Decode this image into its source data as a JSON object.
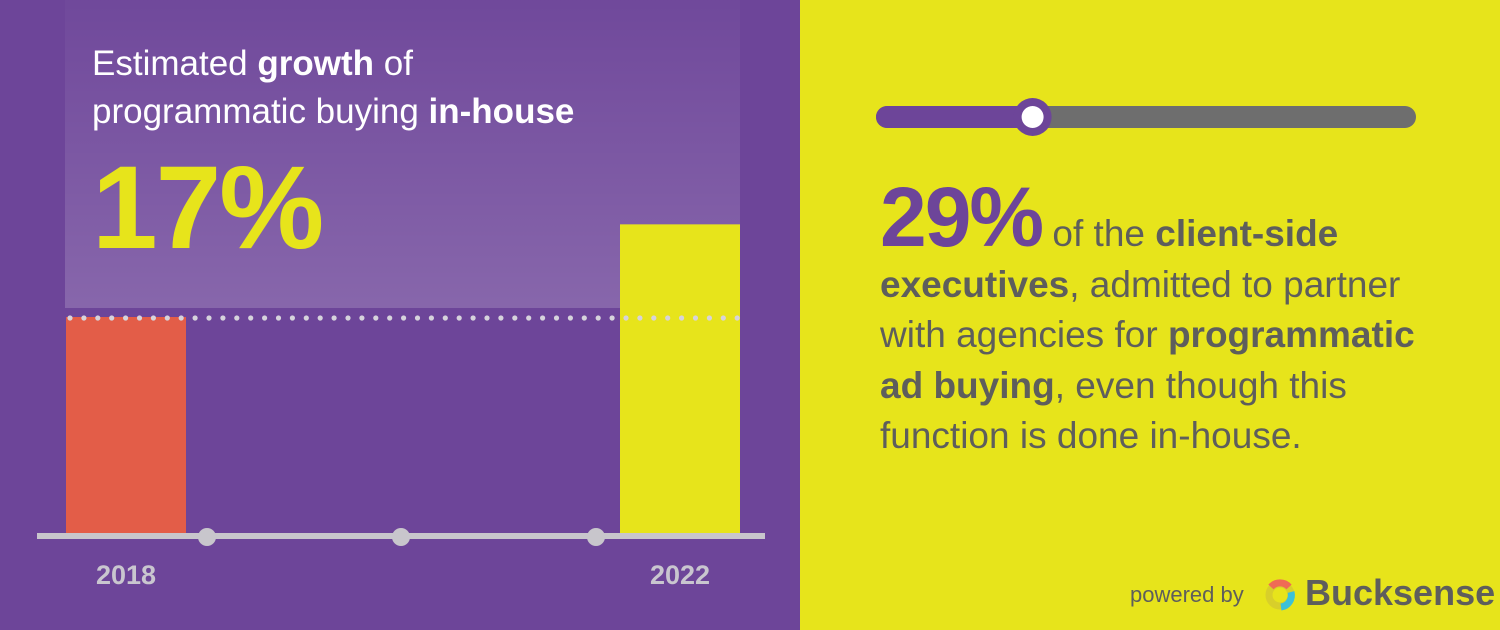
{
  "title": {
    "part1": "Estimated ",
    "bold1": "growth",
    "part2": " of",
    "part3": "programmatic buying ",
    "bold2": "in-house"
  },
  "headline_value": "17%",
  "chart_data": {
    "type": "bar",
    "title": "Estimated growth of programmatic buying in-house",
    "categories": [
      "2018",
      "2022"
    ],
    "values": [
      100,
      117
    ],
    "growth_label": "17%",
    "ylim": [
      60,
      120
    ],
    "colors": [
      "#e35d48",
      "#e7e41b"
    ],
    "axis_markers": 3,
    "reference_line": 100,
    "xlabel": "",
    "ylabel": "",
    "grid": false
  },
  "slider": {
    "value": 0.29,
    "fill_color": "#6d4599",
    "track_color": "#6e6e6e"
  },
  "stat": {
    "pct": "29%",
    "t1": " of the ",
    "b1": "client-side executives",
    "t2": ", admitted to partner with agencies for ",
    "b2": "programmatic ad buying",
    "t3": ", even though this function is done in-house."
  },
  "footer": {
    "powered_by": "powered by",
    "brand": "Bucksense"
  }
}
